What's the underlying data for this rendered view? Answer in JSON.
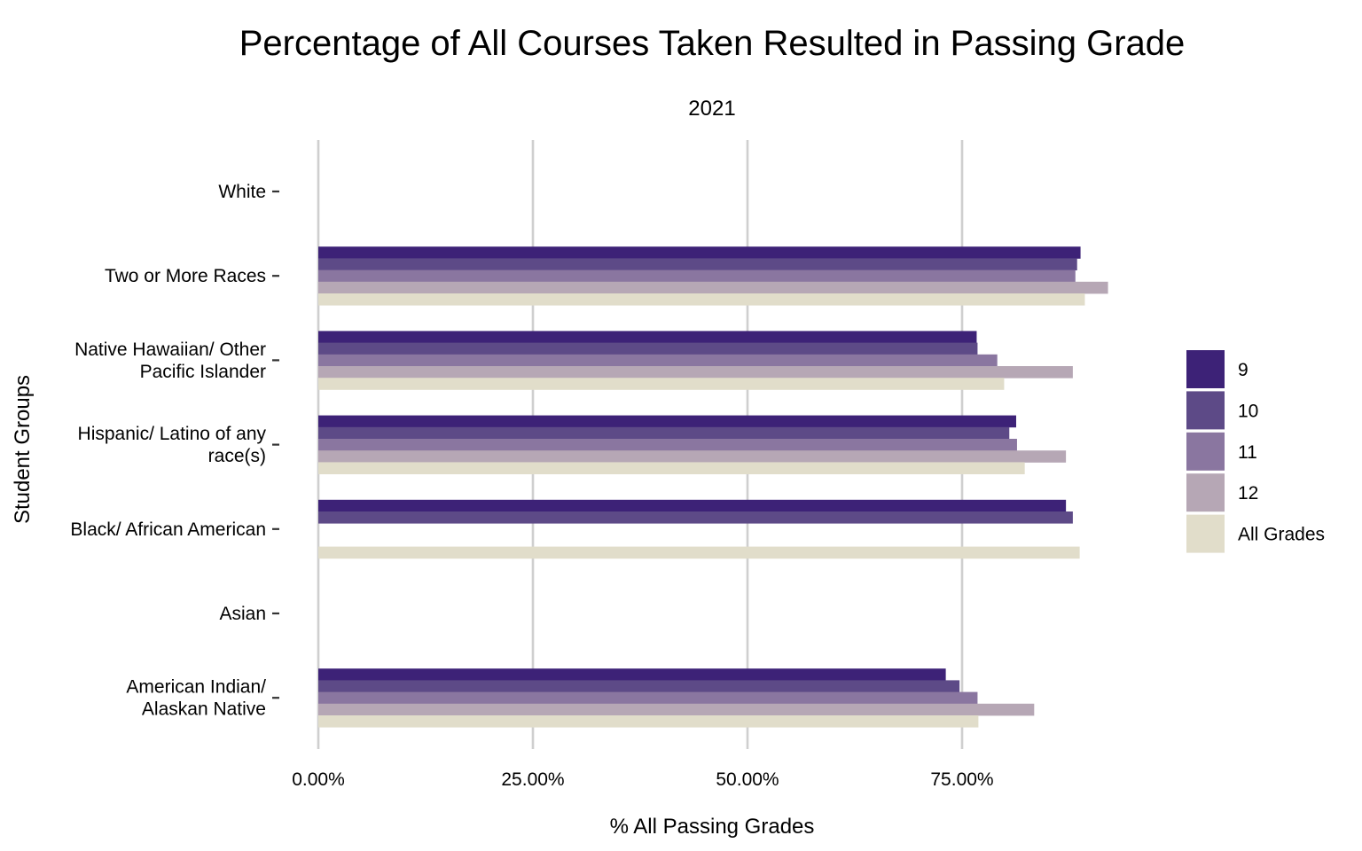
{
  "chart_data": {
    "type": "bar",
    "orientation": "horizontal",
    "title": "Percentage of All Courses Taken Resulted in Passing Grade",
    "subtitle": "2021",
    "xlabel": "% All Passing Grades",
    "ylabel": "Student Groups",
    "xlim": [
      0,
      100
    ],
    "x_ticks": [
      0,
      25,
      50,
      75
    ],
    "x_tick_labels": [
      "0.00%",
      "25.00%",
      "50.00%",
      "75.00%"
    ],
    "grid": "vertical major",
    "legend_position": "right",
    "categories": [
      "White",
      "Two or More Races",
      "Native Hawaiian/ Other Pacific Islander",
      "Hispanic/ Latino of any race(s)",
      "Black/ African American",
      "Asian",
      "American Indian/ Alaskan Native"
    ],
    "category_label_lines": [
      [
        "White"
      ],
      [
        "Two or More Races"
      ],
      [
        "Native Hawaiian/ Other",
        "Pacific Islander"
      ],
      [
        "Hispanic/ Latino of any",
        "race(s)"
      ],
      [
        "Black/ African American"
      ],
      [
        "Asian"
      ],
      [
        "American Indian/",
        "Alaskan Native"
      ]
    ],
    "series": [
      {
        "name": "9",
        "color": "#3d2277",
        "values": [
          null,
          88.8,
          76.7,
          81.3,
          87.1,
          null,
          73.1
        ]
      },
      {
        "name": "10",
        "color": "#5d4a87",
        "values": [
          null,
          88.4,
          76.8,
          80.5,
          87.9,
          null,
          74.7
        ]
      },
      {
        "name": "11",
        "color": "#8a76a0",
        "values": [
          null,
          88.2,
          79.1,
          81.4,
          null,
          null,
          76.8
        ]
      },
      {
        "name": "12",
        "color": "#b6a7b5",
        "values": [
          null,
          92.0,
          87.9,
          87.1,
          null,
          null,
          83.4
        ]
      },
      {
        "name": "All Grades",
        "color": "#e1ddca",
        "values": [
          null,
          89.3,
          79.9,
          82.3,
          88.7,
          null,
          76.9
        ]
      }
    ]
  }
}
